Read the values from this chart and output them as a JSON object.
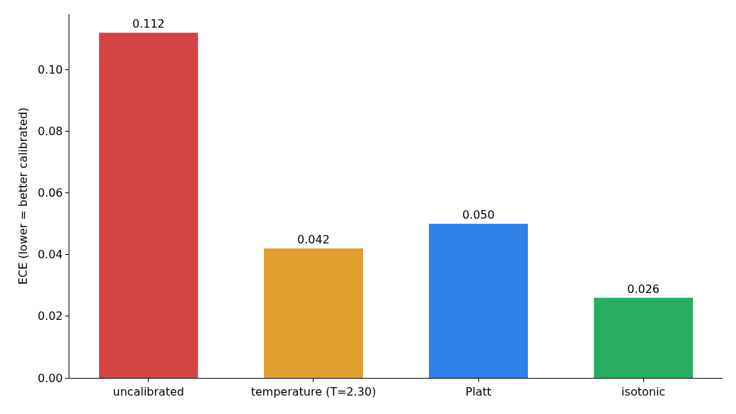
{
  "chart_data": {
    "type": "bar",
    "ylabel": "ECE (lower = better calibrated)",
    "categories": [
      "uncalibrated",
      "temperature (T=2.30)",
      "Platt",
      "isotonic"
    ],
    "values": [
      0.112,
      0.042,
      0.05,
      0.026
    ],
    "value_labels": [
      "0.112",
      "0.042",
      "0.050",
      "0.026"
    ],
    "colors": [
      "#d64545",
      "#e0a030",
      "#2f80e8",
      "#27ae60"
    ],
    "ylim": [
      0,
      0.118
    ],
    "yticks": [
      {
        "value": 0,
        "label": "0.00"
      },
      {
        "value": 0.02,
        "label": "0.02"
      },
      {
        "value": 0.04,
        "label": "0.04"
      },
      {
        "value": 0.06,
        "label": "0.06"
      },
      {
        "value": 0.08,
        "label": "0.08"
      },
      {
        "value": 0.1,
        "label": "0.10"
      }
    ],
    "legend": false
  }
}
